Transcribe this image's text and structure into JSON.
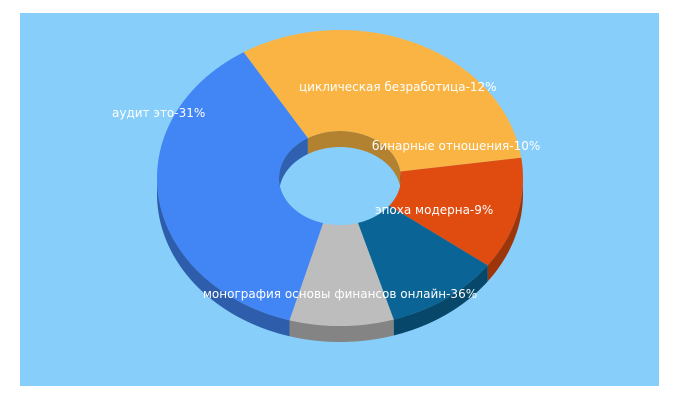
{
  "chart_data": {
    "type": "pie",
    "style": "3d-donut",
    "title": "",
    "background_color": "#87CEFA",
    "slices": [
      {
        "name": "монография основы финансов онлайн",
        "value": 36,
        "label": "монография основы финансов онлайн-36%",
        "color": "#4285F4"
      },
      {
        "name": "аудит это",
        "value": 31,
        "label": "аудит это-31%",
        "color": "#F9B443"
      },
      {
        "name": "циклическая безработица",
        "value": 12,
        "label": "циклическая безработица-12%",
        "color": "#E04B10"
      },
      {
        "name": "бинарные отношения",
        "value": 10,
        "label": "бинарные отношения-10%",
        "color": "#0A6596"
      },
      {
        "name": "эпоха модерна",
        "value": 9,
        "label": "эпоха модерна-9%",
        "color": "#BDBDBD"
      }
    ]
  }
}
